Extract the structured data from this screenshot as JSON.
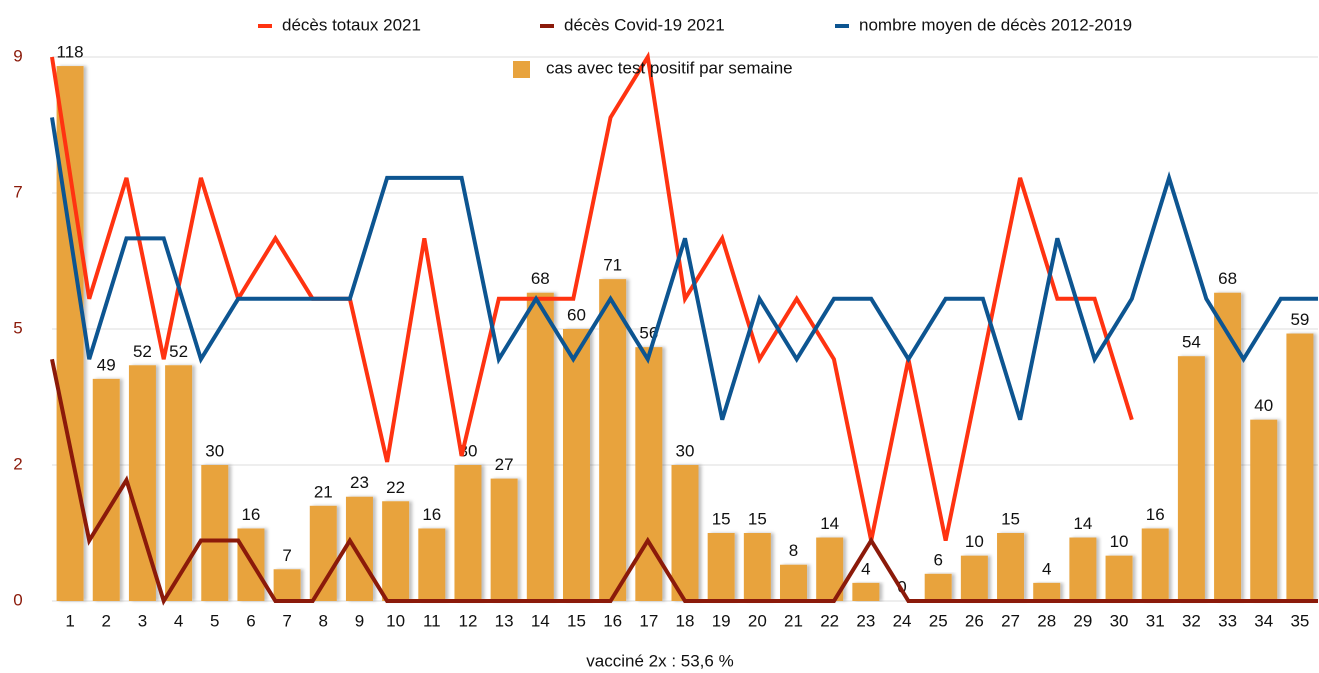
{
  "chart_data": {
    "type": "combo",
    "x_label": "vacciné 2x : 53,6 %",
    "categories": [
      "1",
      "2",
      "3",
      "4",
      "5",
      "6",
      "7",
      "8",
      "9",
      "10",
      "11",
      "12",
      "13",
      "14",
      "15",
      "16",
      "17",
      "18",
      "19",
      "20",
      "21",
      "22",
      "23",
      "24",
      "25",
      "26",
      "27",
      "28",
      "29",
      "30",
      "31",
      "32",
      "33",
      "34",
      "35"
    ],
    "ylim": [
      0,
      9
    ],
    "yticks": [
      0,
      {
        "value": 2.25,
        "label": "2"
      },
      {
        "value": 4.5,
        "label": "5"
      },
      {
        "value": 6.75,
        "label": "7"
      },
      9
    ],
    "y2lim": [
      0,
      120
    ],
    "grid": true,
    "legend": "top",
    "series": [
      {
        "name": "décès totaux 2021",
        "type": "line",
        "color": "#ff3311",
        "values": [
          9,
          5,
          7,
          4,
          7,
          5,
          6,
          5,
          5,
          2.3,
          6,
          2.4,
          5,
          5,
          5,
          8,
          9,
          5,
          6,
          4,
          5,
          4,
          1,
          4,
          1,
          4,
          7,
          5,
          5,
          3,
          null,
          null,
          null,
          null,
          null
        ]
      },
      {
        "name": "décès Covid-19 2021",
        "type": "line",
        "color": "#8b1a0a",
        "values": [
          4,
          1,
          2,
          0,
          1,
          1,
          0,
          0,
          1,
          0,
          0,
          0,
          0,
          0,
          0,
          0,
          1,
          0,
          0,
          0,
          0,
          0,
          1,
          0,
          0,
          0,
          0,
          0,
          0,
          0,
          0,
          0,
          0,
          0,
          0
        ]
      },
      {
        "name": "nombre moyen de décès 2012-2019",
        "type": "line",
        "color": "#0d5591",
        "values": [
          8,
          4,
          6,
          6,
          4,
          5,
          5,
          5,
          5,
          7,
          7,
          7,
          4,
          5,
          4,
          5,
          4,
          6,
          3,
          5,
          4,
          5,
          5,
          4,
          5,
          5,
          3,
          6,
          4,
          5,
          7,
          5,
          4,
          5,
          5
        ]
      },
      {
        "name": "cas avec test positif par semaine",
        "type": "bar",
        "axis": "y2",
        "color": "#e8a33d",
        "values": [
          118,
          49,
          52,
          52,
          30,
          16,
          7,
          21,
          23,
          22,
          16,
          30,
          27,
          68,
          60,
          71,
          56,
          30,
          15,
          15,
          8,
          14,
          4,
          0,
          6,
          10,
          15,
          4,
          14,
          10,
          16,
          54,
          68,
          40,
          59
        ]
      }
    ]
  }
}
